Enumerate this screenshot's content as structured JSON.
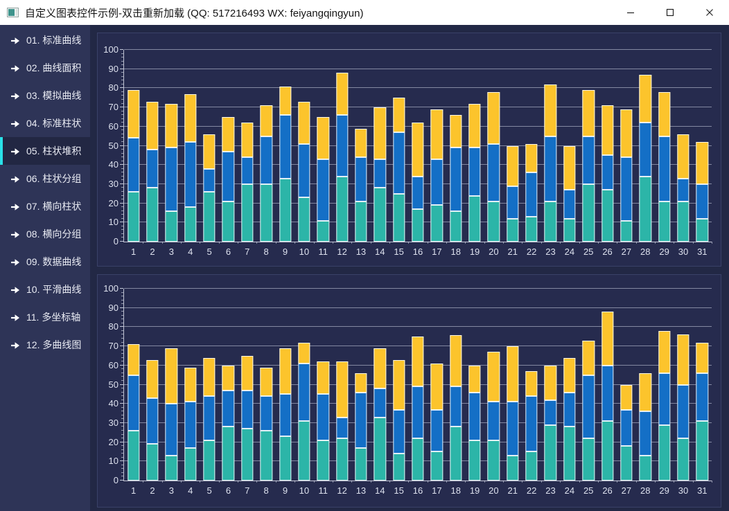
{
  "window": {
    "title": "自定义图表控件示例-双击重新加载 (QQ: 517216493 WX: feiyangqingyun)"
  },
  "sidebar": {
    "items": [
      {
        "label": "01. 标准曲线",
        "selected": false
      },
      {
        "label": "02. 曲线面积",
        "selected": false
      },
      {
        "label": "03. 模拟曲线",
        "selected": false
      },
      {
        "label": "04. 标准柱状",
        "selected": false
      },
      {
        "label": "05. 柱状堆积",
        "selected": true
      },
      {
        "label": "06. 柱状分组",
        "selected": false
      },
      {
        "label": "07. 横向柱状",
        "selected": false
      },
      {
        "label": "08. 横向分组",
        "selected": false
      },
      {
        "label": "09. 数据曲线",
        "selected": false
      },
      {
        "label": "10. 平滑曲线",
        "selected": false
      },
      {
        "label": "11. 多坐标轴",
        "selected": false
      },
      {
        "label": "12. 多曲线图",
        "selected": false
      }
    ]
  },
  "colors": {
    "accent_cyan": "#2ae0e8",
    "teal": "#2cb5a8",
    "blue": "#146fc6",
    "yellow": "#fcc42c",
    "panel_bg": "#262b4e",
    "main_bg": "#222845",
    "sidebar_bg": "#2e3457",
    "axis_text": "#dde1ee"
  },
  "chart_data": [
    {
      "type": "bar",
      "stacked": true,
      "title": "",
      "xlabel": "",
      "ylabel": "",
      "ylim": [
        0,
        100
      ],
      "yticks": [
        0,
        10,
        20,
        30,
        40,
        50,
        60,
        70,
        80,
        90,
        100
      ],
      "grid": true,
      "legend": "none",
      "categories": [
        1,
        2,
        3,
        4,
        5,
        6,
        7,
        8,
        9,
        10,
        11,
        12,
        13,
        14,
        15,
        16,
        17,
        18,
        19,
        20,
        21,
        22,
        23,
        24,
        25,
        26,
        27,
        28,
        29,
        30,
        31
      ],
      "series": [
        {
          "name": "series-1-teal",
          "color": "#2cb5a8",
          "values": [
            26,
            28,
            16,
            18,
            26,
            21,
            30,
            30,
            33,
            23,
            11,
            34,
            21,
            28,
            25,
            17,
            19,
            16,
            24,
            21,
            12,
            13,
            21,
            12,
            30,
            27,
            11,
            34,
            21,
            21,
            12
          ]
        },
        {
          "name": "series-2-blue",
          "color": "#146fc6",
          "values": [
            28,
            20,
            33,
            34,
            12,
            26,
            14,
            25,
            33,
            28,
            32,
            32,
            23,
            15,
            32,
            17,
            24,
            33,
            25,
            30,
            17,
            23,
            34,
            15,
            25,
            18,
            33,
            28,
            34,
            12,
            18
          ]
        },
        {
          "name": "series-3-yellow",
          "color": "#fcc42c",
          "values": [
            25,
            25,
            23,
            25,
            18,
            18,
            18,
            16,
            15,
            22,
            22,
            22,
            15,
            27,
            18,
            28,
            26,
            17,
            23,
            27,
            21,
            15,
            27,
            23,
            24,
            26,
            25,
            25,
            23,
            23,
            22
          ]
        }
      ]
    },
    {
      "type": "bar",
      "stacked": true,
      "title": "",
      "xlabel": "",
      "ylabel": "",
      "ylim": [
        0,
        100
      ],
      "yticks": [
        0,
        10,
        20,
        30,
        40,
        50,
        60,
        70,
        80,
        90,
        100
      ],
      "grid": true,
      "legend": "none",
      "categories": [
        1,
        2,
        3,
        4,
        5,
        6,
        7,
        8,
        9,
        10,
        11,
        12,
        13,
        14,
        15,
        16,
        17,
        18,
        19,
        20,
        21,
        22,
        23,
        24,
        25,
        26,
        27,
        28,
        29,
        30,
        31
      ],
      "series": [
        {
          "name": "series-1-teal",
          "color": "#2cb5a8",
          "values": [
            26,
            19,
            13,
            17,
            21,
            28,
            27,
            26,
            23,
            31,
            21,
            22,
            17,
            33,
            14,
            22,
            15,
            28,
            21,
            21,
            13,
            15,
            29,
            28,
            22,
            31,
            18,
            13,
            29,
            22,
            31
          ]
        },
        {
          "name": "series-2-blue",
          "color": "#146fc6",
          "values": [
            29,
            24,
            27,
            24,
            23,
            19,
            20,
            18,
            22,
            30,
            24,
            11,
            29,
            15,
            23,
            27,
            22,
            21,
            25,
            20,
            28,
            29,
            13,
            18,
            33,
            29,
            19,
            23,
            27,
            28,
            25
          ]
        },
        {
          "name": "series-3-yellow",
          "color": "#fcc42c",
          "values": [
            16,
            20,
            29,
            18,
            20,
            13,
            18,
            15,
            24,
            11,
            17,
            29,
            10,
            21,
            26,
            26,
            24,
            27,
            14,
            26,
            29,
            13,
            18,
            18,
            18,
            28,
            13,
            20,
            22,
            26,
            16
          ]
        }
      ]
    }
  ]
}
